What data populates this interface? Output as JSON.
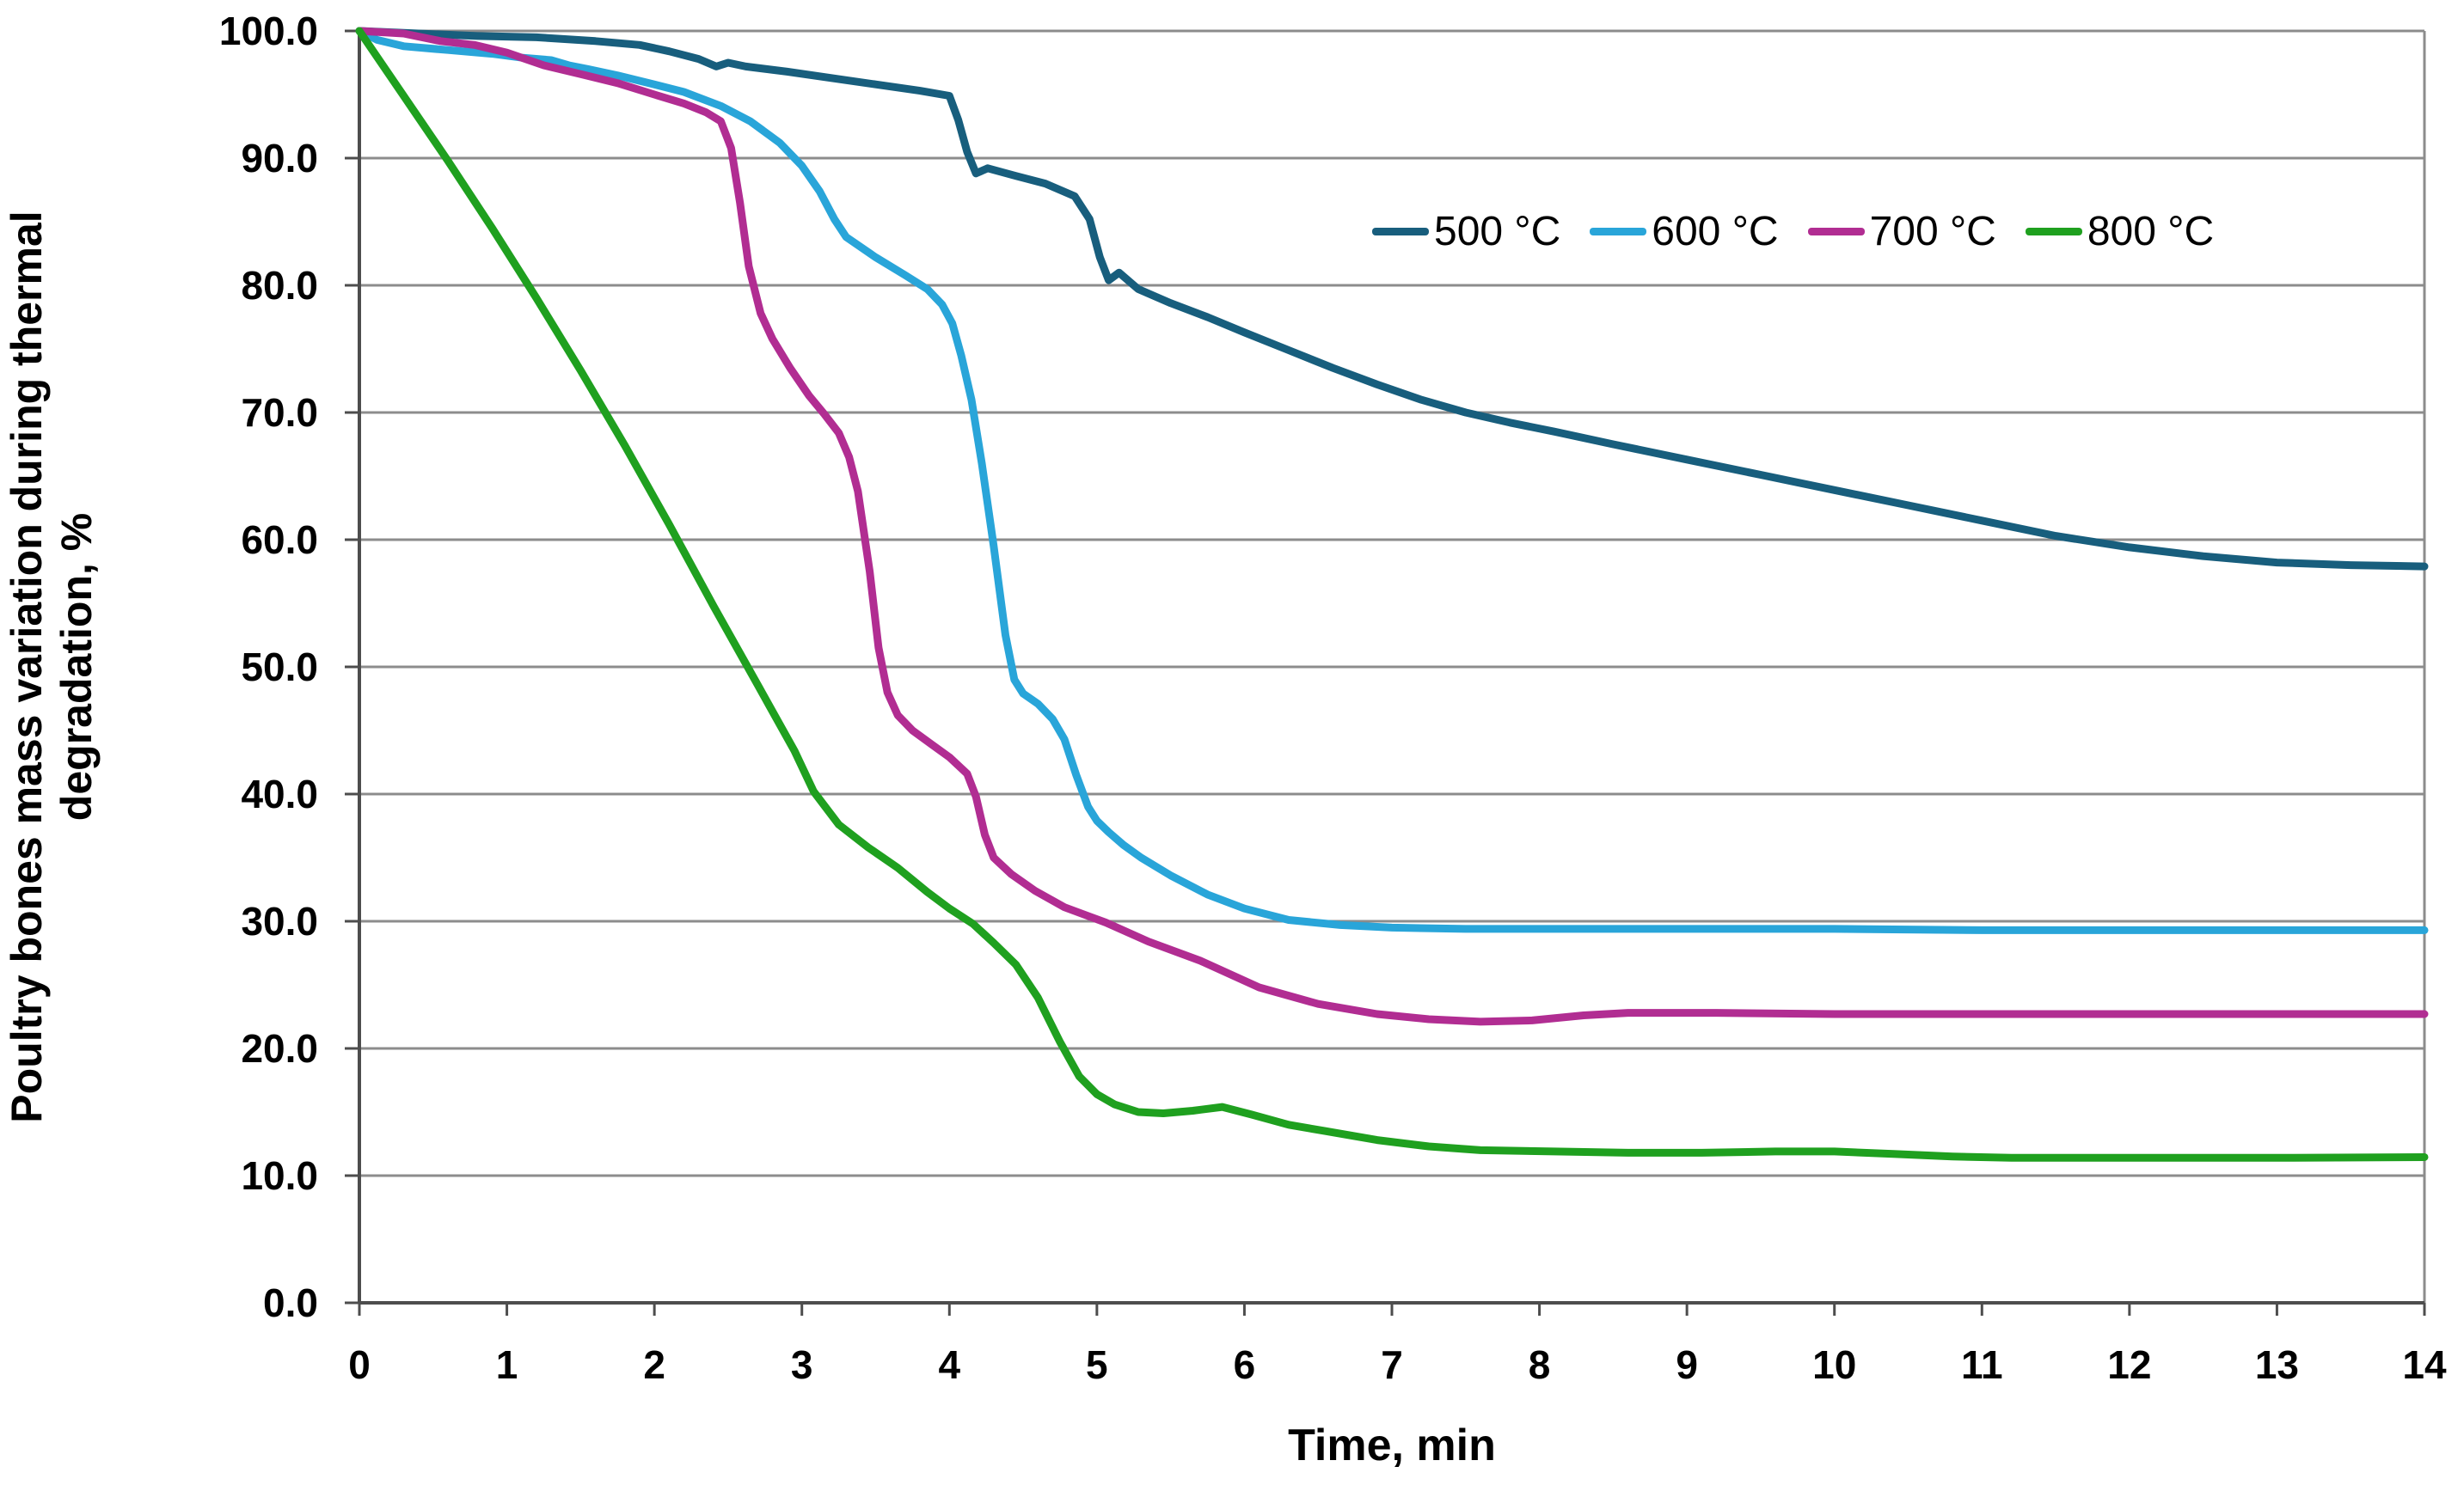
{
  "chart_data": {
    "type": "line",
    "title": "",
    "xlabel": "Time, min",
    "ylabel_line1": "Poultry bones mass variation during thermal",
    "ylabel_line2": "degradation, %",
    "xlim": [
      0,
      14
    ],
    "ylim": [
      0,
      100
    ],
    "grid": "horizontal",
    "legend_position": "top-right-inside",
    "x_ticks": [
      {
        "value": 0,
        "label": "0"
      },
      {
        "value": 1,
        "label": "1"
      },
      {
        "value": 2,
        "label": "2"
      },
      {
        "value": 3,
        "label": "3"
      },
      {
        "value": 4,
        "label": "4"
      },
      {
        "value": 5,
        "label": "5"
      },
      {
        "value": 6,
        "label": "6"
      },
      {
        "value": 7,
        "label": "7"
      },
      {
        "value": 8,
        "label": "8"
      },
      {
        "value": 9,
        "label": "9"
      },
      {
        "value": 10,
        "label": "10"
      },
      {
        "value": 11,
        "label": "11"
      },
      {
        "value": 12,
        "label": "12"
      },
      {
        "value": 13,
        "label": "13"
      },
      {
        "value": 14,
        "label": "14"
      }
    ],
    "y_ticks": [
      {
        "value": 100,
        "label": "100.0"
      },
      {
        "value": 90,
        "label": "90.0"
      },
      {
        "value": 80,
        "label": "80.0"
      },
      {
        "value": 70,
        "label": "70.0"
      },
      {
        "value": 60,
        "label": "60.0"
      },
      {
        "value": 50,
        "label": "50.0"
      },
      {
        "value": 40,
        "label": "40.0"
      },
      {
        "value": 30,
        "label": "30.0"
      },
      {
        "value": 20,
        "label": "20.0"
      },
      {
        "value": 10,
        "label": "10.0"
      },
      {
        "value": 0,
        "label": "0.0"
      }
    ],
    "series": [
      {
        "name": "500 °C",
        "color": "#185E7D",
        "points": [
          [
            0,
            100
          ],
          [
            0.4,
            99.8
          ],
          [
            0.8,
            99.6
          ],
          [
            1.2,
            99.5
          ],
          [
            1.6,
            99.2
          ],
          [
            1.9,
            98.9
          ],
          [
            2.1,
            98.4
          ],
          [
            2.3,
            97.8
          ],
          [
            2.42,
            97.2
          ],
          [
            2.5,
            97.5
          ],
          [
            2.62,
            97.2
          ],
          [
            2.9,
            96.8
          ],
          [
            3.2,
            96.3
          ],
          [
            3.5,
            95.8
          ],
          [
            3.8,
            95.3
          ],
          [
            4.0,
            94.9
          ],
          [
            4.06,
            93.0
          ],
          [
            4.12,
            90.5
          ],
          [
            4.18,
            88.8
          ],
          [
            4.26,
            89.2
          ],
          [
            4.45,
            88.6
          ],
          [
            4.65,
            88.0
          ],
          [
            4.85,
            87.0
          ],
          [
            4.95,
            85.2
          ],
          [
            5.02,
            82.2
          ],
          [
            5.08,
            80.4
          ],
          [
            5.15,
            81.0
          ],
          [
            5.28,
            79.7
          ],
          [
            5.5,
            78.6
          ],
          [
            5.75,
            77.5
          ],
          [
            6.0,
            76.3
          ],
          [
            6.3,
            74.9
          ],
          [
            6.6,
            73.5
          ],
          [
            6.9,
            72.2
          ],
          [
            7.2,
            71.0
          ],
          [
            7.5,
            70.0
          ],
          [
            7.8,
            69.2
          ],
          [
            8.1,
            68.5
          ],
          [
            8.5,
            67.5
          ],
          [
            9.0,
            66.3
          ],
          [
            9.5,
            65.1
          ],
          [
            10.0,
            63.9
          ],
          [
            10.5,
            62.7
          ],
          [
            11.0,
            61.5
          ],
          [
            11.5,
            60.3
          ],
          [
            12.0,
            59.4
          ],
          [
            12.5,
            58.7
          ],
          [
            13.0,
            58.2
          ],
          [
            13.5,
            58.0
          ],
          [
            14.0,
            57.9
          ]
        ]
      },
      {
        "name": "600 °C",
        "color": "#29A5D9",
        "points": [
          [
            0,
            100
          ],
          [
            0.12,
            99.3
          ],
          [
            0.3,
            98.8
          ],
          [
            0.6,
            98.5
          ],
          [
            0.9,
            98.2
          ],
          [
            1.1,
            97.9
          ],
          [
            1.3,
            97.7
          ],
          [
            1.42,
            97.3
          ],
          [
            1.55,
            97.0
          ],
          [
            1.75,
            96.5
          ],
          [
            2.0,
            95.8
          ],
          [
            2.2,
            95.2
          ],
          [
            2.45,
            94.1
          ],
          [
            2.65,
            92.9
          ],
          [
            2.85,
            91.2
          ],
          [
            3.0,
            89.4
          ],
          [
            3.12,
            87.4
          ],
          [
            3.22,
            85.2
          ],
          [
            3.3,
            83.8
          ],
          [
            3.5,
            82.2
          ],
          [
            3.7,
            80.8
          ],
          [
            3.85,
            79.7
          ],
          [
            3.95,
            78.5
          ],
          [
            4.02,
            77.0
          ],
          [
            4.08,
            74.5
          ],
          [
            4.15,
            71.0
          ],
          [
            4.22,
            66.0
          ],
          [
            4.3,
            59.5
          ],
          [
            4.38,
            52.5
          ],
          [
            4.44,
            49.0
          ],
          [
            4.5,
            47.9
          ],
          [
            4.6,
            47.1
          ],
          [
            4.7,
            45.9
          ],
          [
            4.78,
            44.3
          ],
          [
            4.86,
            41.5
          ],
          [
            4.94,
            39.0
          ],
          [
            5.0,
            37.9
          ],
          [
            5.08,
            37.0
          ],
          [
            5.18,
            36.0
          ],
          [
            5.3,
            35.0
          ],
          [
            5.5,
            33.6
          ],
          [
            5.75,
            32.1
          ],
          [
            6.0,
            31.0
          ],
          [
            6.3,
            30.1
          ],
          [
            6.65,
            29.7
          ],
          [
            7.0,
            29.5
          ],
          [
            7.5,
            29.4
          ],
          [
            8.0,
            29.4
          ],
          [
            9.0,
            29.4
          ],
          [
            10.0,
            29.4
          ],
          [
            11.0,
            29.3
          ],
          [
            12.0,
            29.3
          ],
          [
            13.0,
            29.3
          ],
          [
            14.0,
            29.3
          ]
        ]
      },
      {
        "name": "700 °C",
        "color": "#B12D92",
        "points": [
          [
            0,
            100
          ],
          [
            0.3,
            99.8
          ],
          [
            0.55,
            99.2
          ],
          [
            0.78,
            98.9
          ],
          [
            1.0,
            98.3
          ],
          [
            1.25,
            97.3
          ],
          [
            1.5,
            96.6
          ],
          [
            1.75,
            95.9
          ],
          [
            2.0,
            95.0
          ],
          [
            2.2,
            94.3
          ],
          [
            2.35,
            93.6
          ],
          [
            2.45,
            92.9
          ],
          [
            2.52,
            90.8
          ],
          [
            2.58,
            86.5
          ],
          [
            2.64,
            81.5
          ],
          [
            2.72,
            77.8
          ],
          [
            2.8,
            75.8
          ],
          [
            2.92,
            73.5
          ],
          [
            3.05,
            71.3
          ],
          [
            3.15,
            69.9
          ],
          [
            3.25,
            68.4
          ],
          [
            3.32,
            66.5
          ],
          [
            3.38,
            63.8
          ],
          [
            3.46,
            57.5
          ],
          [
            3.52,
            51.5
          ],
          [
            3.58,
            48.0
          ],
          [
            3.65,
            46.2
          ],
          [
            3.75,
            45.0
          ],
          [
            3.88,
            43.9
          ],
          [
            4.0,
            42.9
          ],
          [
            4.12,
            41.6
          ],
          [
            4.18,
            39.8
          ],
          [
            4.24,
            36.8
          ],
          [
            4.3,
            35.0
          ],
          [
            4.42,
            33.7
          ],
          [
            4.58,
            32.4
          ],
          [
            4.78,
            31.1
          ],
          [
            5.06,
            29.9
          ],
          [
            5.35,
            28.4
          ],
          [
            5.7,
            26.9
          ],
          [
            6.1,
            24.8
          ],
          [
            6.5,
            23.5
          ],
          [
            6.9,
            22.7
          ],
          [
            7.25,
            22.3
          ],
          [
            7.6,
            22.1
          ],
          [
            7.95,
            22.2
          ],
          [
            8.3,
            22.6
          ],
          [
            8.6,
            22.8
          ],
          [
            9.2,
            22.8
          ],
          [
            10.0,
            22.7
          ],
          [
            11.0,
            22.7
          ],
          [
            12.0,
            22.7
          ],
          [
            13.0,
            22.7
          ],
          [
            14.0,
            22.7
          ]
        ]
      },
      {
        "name": "800 °C",
        "color": "#1FA01F",
        "points": [
          [
            0,
            100
          ],
          [
            0.3,
            94.9
          ],
          [
            0.6,
            89.8
          ],
          [
            0.9,
            84.5
          ],
          [
            1.2,
            79.0
          ],
          [
            1.5,
            73.3
          ],
          [
            1.8,
            67.4
          ],
          [
            2.1,
            61.2
          ],
          [
            2.4,
            54.8
          ],
          [
            2.7,
            48.6
          ],
          [
            2.95,
            43.4
          ],
          [
            3.08,
            40.2
          ],
          [
            3.25,
            37.6
          ],
          [
            3.45,
            35.8
          ],
          [
            3.65,
            34.2
          ],
          [
            3.85,
            32.3
          ],
          [
            4.0,
            31.0
          ],
          [
            4.16,
            29.8
          ],
          [
            4.3,
            28.3
          ],
          [
            4.45,
            26.6
          ],
          [
            4.6,
            24.0
          ],
          [
            4.75,
            20.5
          ],
          [
            4.88,
            17.8
          ],
          [
            5.0,
            16.4
          ],
          [
            5.12,
            15.6
          ],
          [
            5.28,
            15.0
          ],
          [
            5.45,
            14.9
          ],
          [
            5.65,
            15.1
          ],
          [
            5.85,
            15.4
          ],
          [
            6.05,
            14.8
          ],
          [
            6.3,
            14.0
          ],
          [
            6.55,
            13.5
          ],
          [
            6.9,
            12.8
          ],
          [
            7.25,
            12.3
          ],
          [
            7.6,
            12.0
          ],
          [
            8.1,
            11.9
          ],
          [
            8.6,
            11.8
          ],
          [
            9.1,
            11.8
          ],
          [
            9.6,
            11.9
          ],
          [
            10.0,
            11.9
          ],
          [
            10.4,
            11.7
          ],
          [
            10.8,
            11.5
          ],
          [
            11.2,
            11.4
          ],
          [
            12.0,
            11.4
          ],
          [
            13.0,
            11.4
          ],
          [
            14.0,
            11.45
          ]
        ]
      }
    ]
  },
  "style_colors": {
    "background": "#ffffff",
    "gridline": "#8C8C8C",
    "axis": "#4D4D4D",
    "right_border": "#8C8C8C",
    "text": "#000000"
  }
}
